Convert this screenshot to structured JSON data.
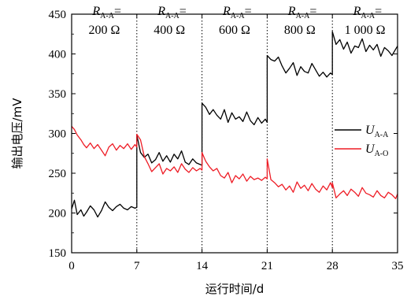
{
  "chart_data": {
    "type": "line",
    "title": "",
    "xlabel": "运行时间/d",
    "ylabel": "输出电压/mV",
    "xlim": [
      0,
      35
    ],
    "ylim": [
      150,
      450
    ],
    "xticks": [
      0,
      7,
      14,
      21,
      28,
      35
    ],
    "yticks": [
      150,
      200,
      250,
      300,
      350,
      400,
      450
    ],
    "grid": false,
    "legend_position": "right",
    "phase_boundaries": [
      7,
      14,
      21,
      28
    ],
    "phases": [
      {
        "var": "R",
        "sub": "A-A",
        "eq": "=",
        "value": "200 Ω"
      },
      {
        "var": "R",
        "sub": "A-A",
        "eq": "=",
        "value": "400 Ω"
      },
      {
        "var": "R",
        "sub": "A-A",
        "eq": "=",
        "value": "600 Ω"
      },
      {
        "var": "R",
        "sub": "A-A",
        "eq": "=",
        "value": "800 Ω"
      },
      {
        "var": "R",
        "sub": "A-A",
        "eq": "=",
        "value": "1 000 Ω"
      }
    ],
    "series": [
      {
        "name": "U",
        "sub": "A-A",
        "color": "#000000",
        "x": [
          0,
          0.3,
          0.6,
          1,
          1.3,
          1.6,
          2,
          2.4,
          2.8,
          3.2,
          3.6,
          4,
          4.4,
          4.8,
          5.2,
          5.6,
          6,
          6.4,
          6.8,
          7,
          7,
          7.4,
          7.8,
          8.2,
          8.6,
          9,
          9.4,
          9.8,
          10.2,
          10.6,
          11,
          11.4,
          11.8,
          12.2,
          12.6,
          13,
          13.4,
          13.8,
          14,
          14,
          14.4,
          14.8,
          15.2,
          15.6,
          16,
          16.4,
          16.8,
          17.2,
          17.6,
          18,
          18.4,
          18.8,
          19.2,
          19.6,
          20,
          20.4,
          20.8,
          21,
          21,
          21.4,
          21.8,
          22.2,
          22.6,
          23,
          23.4,
          23.8,
          24.2,
          24.6,
          25,
          25.4,
          25.8,
          26.2,
          26.6,
          27,
          27.4,
          27.8,
          28,
          28,
          28.4,
          28.8,
          29.2,
          29.6,
          30,
          30.4,
          30.8,
          31.2,
          31.6,
          32,
          32.4,
          32.8,
          33.2,
          33.6,
          34,
          34.4,
          34.8,
          35
        ],
        "y": [
          205,
          216,
          198,
          204,
          196,
          201,
          209,
          204,
          195,
          203,
          214,
          207,
          203,
          208,
          211,
          206,
          204,
          208,
          206,
          207,
          298,
          276,
          270,
          274,
          263,
          267,
          276,
          265,
          272,
          264,
          274,
          268,
          278,
          264,
          261,
          268,
          263,
          261,
          260,
          338,
          333,
          324,
          330,
          323,
          318,
          330,
          314,
          326,
          318,
          321,
          315,
          327,
          316,
          311,
          320,
          313,
          318,
          314,
          398,
          393,
          391,
          396,
          385,
          376,
          382,
          389,
          373,
          384,
          378,
          376,
          388,
          380,
          372,
          377,
          371,
          376,
          374,
          428,
          412,
          418,
          406,
          415,
          401,
          410,
          408,
          419,
          403,
          411,
          405,
          412,
          397,
          408,
          404,
          398,
          406,
          410
        ]
      },
      {
        "name": "U",
        "sub": "A-O",
        "color": "#ee1c25",
        "x": [
          0,
          0.3,
          0.6,
          1,
          1.3,
          1.6,
          2,
          2.4,
          2.8,
          3.2,
          3.6,
          4,
          4.4,
          4.8,
          5.2,
          5.6,
          6,
          6.4,
          6.8,
          7,
          7,
          7.4,
          7.8,
          8.2,
          8.6,
          9,
          9.4,
          9.8,
          10.2,
          10.6,
          11,
          11.4,
          11.8,
          12.2,
          12.6,
          13,
          13.4,
          13.8,
          14,
          14,
          14.4,
          14.8,
          15.2,
          15.6,
          16,
          16.4,
          16.8,
          17.2,
          17.6,
          18,
          18.4,
          18.8,
          19.2,
          19.6,
          20,
          20.4,
          20.8,
          21,
          21,
          21.4,
          21.8,
          22.2,
          22.6,
          23,
          23.4,
          23.8,
          24.2,
          24.6,
          25,
          25.4,
          25.8,
          26.2,
          26.6,
          27,
          27.4,
          27.8,
          28,
          28,
          28.4,
          28.8,
          29.2,
          29.6,
          30,
          30.4,
          30.8,
          31.2,
          31.6,
          32,
          32.4,
          32.8,
          33.2,
          33.6,
          34,
          34.4,
          34.8,
          35
        ],
        "y": [
          309,
          305,
          298,
          292,
          286,
          282,
          288,
          281,
          286,
          279,
          272,
          283,
          287,
          279,
          285,
          281,
          287,
          280,
          286,
          283,
          299,
          292,
          271,
          262,
          252,
          257,
          262,
          249,
          256,
          253,
          258,
          251,
          262,
          255,
          251,
          257,
          253,
          256,
          254,
          276,
          265,
          258,
          253,
          256,
          247,
          244,
          251,
          238,
          247,
          243,
          249,
          240,
          246,
          242,
          244,
          241,
          245,
          243,
          268,
          242,
          238,
          233,
          236,
          229,
          234,
          226,
          239,
          231,
          235,
          228,
          237,
          230,
          226,
          234,
          229,
          238,
          232,
          238,
          219,
          224,
          228,
          222,
          230,
          226,
          221,
          232,
          225,
          223,
          220,
          228,
          222,
          219,
          226,
          223,
          218,
          224
        ]
      }
    ]
  }
}
